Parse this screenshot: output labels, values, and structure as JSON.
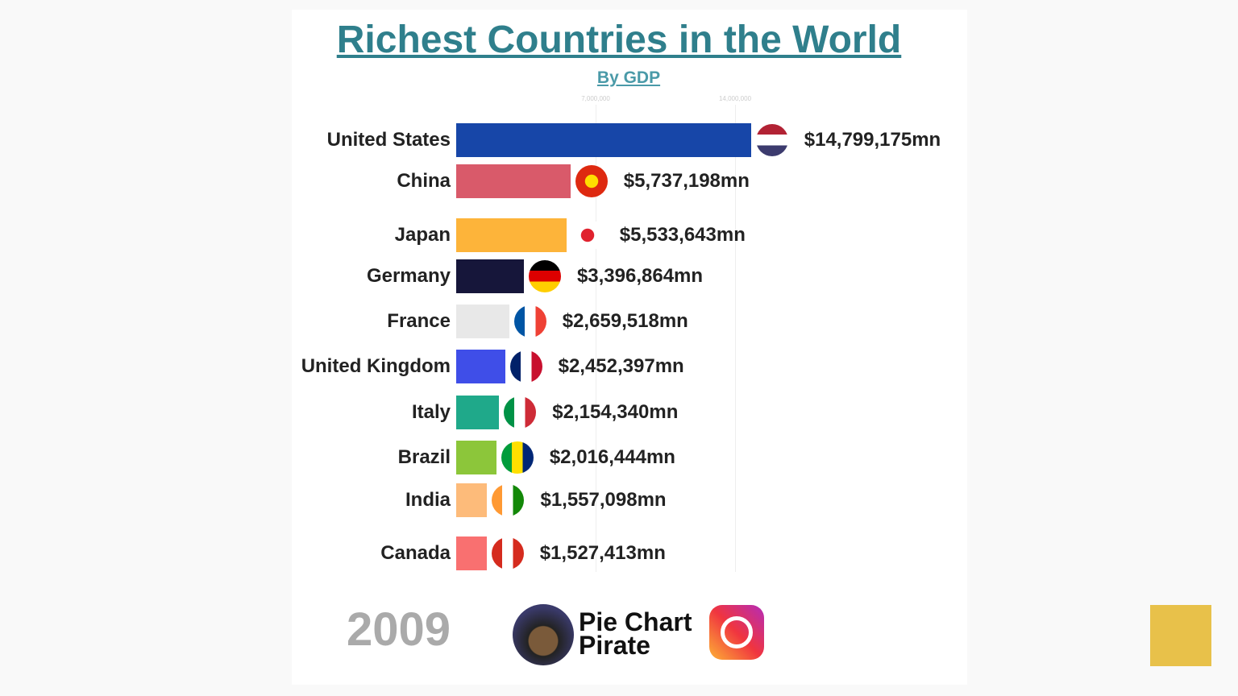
{
  "chart_data": {
    "type": "bar",
    "title": "Richest Countries in the World",
    "subtitle": "By GDP",
    "orientation": "horizontal",
    "xlim": [
      0,
      16000000
    ],
    "ticks": [
      {
        "value": 7000000,
        "label": "7,000,000"
      },
      {
        "value": 14000000,
        "label": "14,000,000"
      }
    ],
    "categories": [
      "United States",
      "China",
      "Japan",
      "Germany",
      "France",
      "United Kingdom",
      "Italy",
      "Brazil",
      "India",
      "Canada"
    ],
    "values": [
      14799175,
      5737198,
      5533643,
      3396864,
      2659518,
      2452397,
      2154340,
      2016444,
      1557098,
      1527413
    ],
    "value_labels": [
      "$14,799,175mn",
      "$5,737,198mn",
      "$5,533,643mn",
      "$3,396,864mn",
      "$2,659,518mn",
      "$2,452,397mn",
      "$2,154,340mn",
      "$2,016,444mn",
      "$1,557,098mn",
      "$1,527,413mn"
    ],
    "colors": [
      "#1746a8",
      "#d95a6a",
      "#fdb43a",
      "#16163a",
      "#e8e8e8",
      "#3f4ee8",
      "#1fa98a",
      "#8cc63a",
      "#fdbb7a",
      "#f97070"
    ],
    "flags": [
      [
        "#b22234",
        "#fff",
        "#3c3b6e"
      ],
      [
        "#de2910",
        "#ffde00"
      ],
      [
        "#fff",
        "#e0222e"
      ],
      [
        "#000",
        "#dd0000",
        "#ffce00"
      ],
      [
        "#0055a4",
        "#fff",
        "#ef4135"
      ],
      [
        "#012169",
        "#fff",
        "#c8102e"
      ],
      [
        "#009246",
        "#fff",
        "#ce2b37"
      ],
      [
        "#009c3b",
        "#ffdf00",
        "#002776"
      ],
      [
        "#ff9933",
        "#fff",
        "#138808"
      ],
      [
        "#d52b1e",
        "#fff",
        "#d52b1e"
      ]
    ],
    "grid": true,
    "legend": "none"
  },
  "year": "2009",
  "brand": {
    "line1": "Pie Chart",
    "line2": "Pirate"
  }
}
